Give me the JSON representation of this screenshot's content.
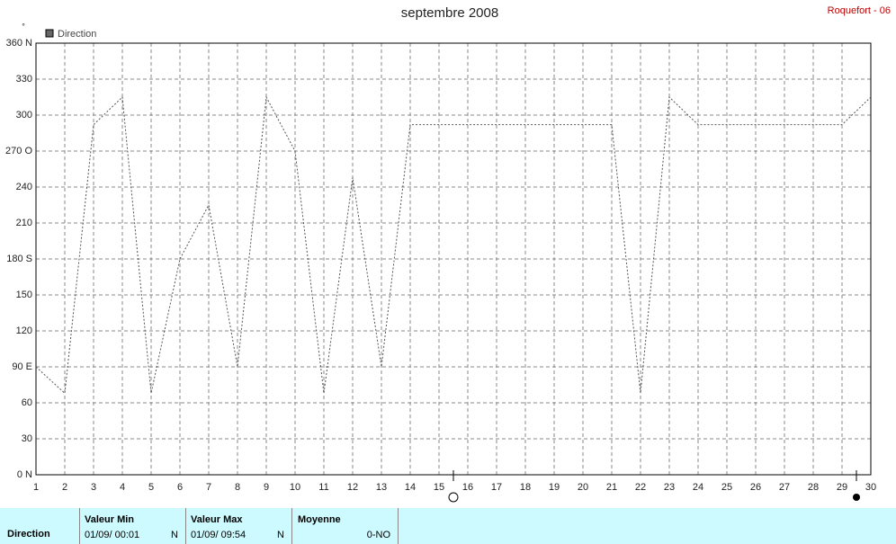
{
  "chart_data": {
    "type": "line",
    "title": "septembre 2008",
    "station": "Roquefort - 06",
    "y_unit": "°",
    "x": [
      1,
      2,
      3,
      4,
      5,
      6,
      7,
      8,
      9,
      10,
      11,
      12,
      13,
      14,
      15,
      16,
      17,
      18,
      19,
      20,
      21,
      22,
      23,
      24,
      25,
      26,
      27,
      28,
      29,
      30
    ],
    "xlim": [
      1,
      30
    ],
    "xticks": [
      1,
      2,
      3,
      4,
      5,
      6,
      7,
      8,
      9,
      10,
      11,
      12,
      13,
      14,
      15,
      16,
      17,
      18,
      19,
      20,
      21,
      22,
      23,
      24,
      25,
      26,
      27,
      28,
      29,
      30
    ],
    "ylim": [
      0,
      360
    ],
    "yticks": [
      {
        "value": 0,
        "label": "0 N"
      },
      30,
      60,
      {
        "value": 90,
        "label": "90 E"
      },
      120,
      150,
      {
        "value": 180,
        "label": "180 S"
      },
      210,
      240,
      {
        "value": 270,
        "label": "270 O"
      },
      300,
      330,
      {
        "value": 360,
        "label": "360 N"
      }
    ],
    "grid": true,
    "series": [
      {
        "name": "Direction",
        "color": "#555555",
        "values": [
          90,
          68,
          292,
          315,
          68,
          180,
          225,
          90,
          315,
          270,
          68,
          248,
          90,
          292,
          292,
          292,
          292,
          292,
          292,
          292,
          292,
          68,
          315,
          292,
          292,
          292,
          292,
          292,
          292,
          315
        ]
      }
    ]
  },
  "table": {
    "row_label": "Direction",
    "columns": [
      {
        "header": "Valeur Min",
        "date": "01/09/ 00:01",
        "dir": "N"
      },
      {
        "header": "Valeur Max",
        "date": "01/09/ 09:54",
        "dir": "N"
      },
      {
        "header": "Moyenne",
        "dir": "0-NO"
      }
    ]
  }
}
